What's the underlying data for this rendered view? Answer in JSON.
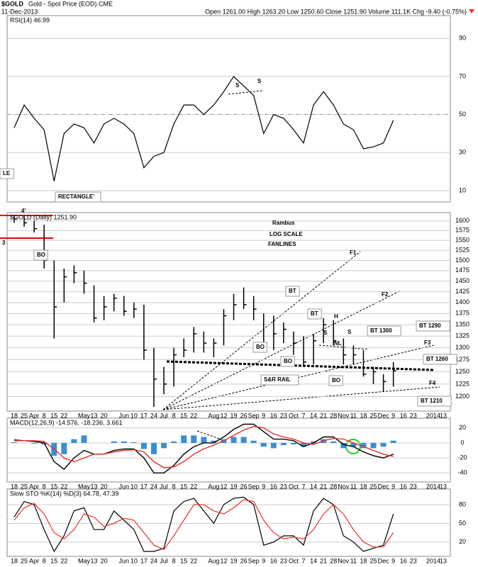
{
  "header": {
    "symbol": "$GOLD",
    "name": "Gold - Spot Price (EOD) CME",
    "date": "11-Dec-2013",
    "quote": "Open 1261.00 High 1263.20 Low 1250.60 Close 1251.90 Volume 111.1K Chg -9.40 (-0.75%)"
  },
  "chart_data": [
    {
      "type": "line",
      "label": "RSI(14) 46.99",
      "ylim": [
        4,
        102
      ],
      "yticks": [
        10,
        30,
        50,
        70,
        90
      ],
      "series": [
        {
          "color": "#000000",
          "values": [
            43,
            55,
            48,
            42,
            15,
            40,
            45,
            43,
            35,
            45,
            48,
            45,
            40,
            22,
            28,
            30,
            45,
            55,
            55,
            50,
            55,
            62,
            70,
            65,
            60,
            40,
            50,
            48,
            42,
            35,
            55,
            62,
            55,
            45,
            42,
            32,
            33,
            35,
            47,
            null,
            null,
            null,
            null,
            null
          ]
        }
      ]
    },
    {
      "type": "ohlc",
      "label": "$GOLD (Daily) 1251.90",
      "log_scale": true,
      "ylim": [
        1172,
        1622
      ],
      "yticks": [
        1200,
        1225,
        1250,
        1275,
        1300,
        1325,
        1350,
        1375,
        1400,
        1425,
        1450,
        1475,
        1500,
        1525,
        1550,
        1575,
        1600
      ],
      "categories": [
        "18",
        "25",
        "Apr",
        "8",
        "15",
        "22",
        null,
        "May",
        "13",
        "20",
        null,
        "Jun",
        "10",
        "17",
        "24",
        "Jul",
        "8",
        "15",
        "22",
        null,
        "Aug",
        "12",
        "19",
        "26",
        "Sep",
        "9",
        "16",
        "23",
        "Oct",
        "7",
        "14",
        "21",
        "28",
        "Nov",
        "11",
        "18",
        "25",
        "Dec",
        "9",
        "16",
        "23",
        null,
        "2014",
        "13"
      ],
      "color": "#000000",
      "high": [
        1615,
        1612,
        1600,
        1590,
        1500,
        1480,
        1488,
        1475,
        1440,
        1415,
        1420,
        1415,
        1400,
        1395,
        1300,
        1260,
        1300,
        1320,
        1345,
        1335,
        1320,
        1385,
        1420,
        1435,
        1415,
        1375,
        1370,
        1355,
        1335,
        1325,
        1330,
        1365,
        1360,
        1320,
        1305,
        1295,
        1260,
        1245,
        1270,
        null,
        null,
        null,
        null,
        null
      ],
      "low": [
        1595,
        1585,
        1570,
        1480,
        1320,
        1400,
        1445,
        1420,
        1355,
        1360,
        1380,
        1370,
        1365,
        1275,
        1180,
        1205,
        1220,
        1280,
        1290,
        1290,
        1280,
        1305,
        1360,
        1385,
        1360,
        1300,
        1295,
        1310,
        1285,
        1260,
        1265,
        1310,
        1305,
        1265,
        1265,
        1240,
        1225,
        1210,
        1220,
        null,
        null,
        null,
        null,
        null
      ],
      "close": [
        1605,
        1595,
        1580,
        1500,
        1390,
        1460,
        1470,
        1445,
        1365,
        1390,
        1410,
        1380,
        1385,
        1295,
        1235,
        1225,
        1285,
        1295,
        1330,
        1310,
        1310,
        1370,
        1395,
        1395,
        1385,
        1310,
        1330,
        1340,
        1310,
        1270,
        1315,
        1350,
        1315,
        1285,
        1285,
        1245,
        1250,
        1230,
        1252,
        null,
        null,
        null,
        null,
        null
      ]
    },
    {
      "type": "macd",
      "label": "MACD(12,26,9) -14.576, -18.236, 3.661",
      "ylim": [
        -52,
        33
      ],
      "yticks": [
        20,
        0,
        -20,
        -40
      ],
      "series": [
        {
          "color": "#000000",
          "values": [
            4,
            3,
            2,
            0,
            -25,
            -35,
            -20,
            -10,
            -15,
            -15,
            -10,
            -8,
            -8,
            -20,
            -40,
            -40,
            -30,
            -15,
            -5,
            0,
            0,
            8,
            18,
            25,
            25,
            15,
            5,
            5,
            3,
            -5,
            0,
            8,
            8,
            -2,
            -5,
            -12,
            -17,
            -20,
            -15,
            null,
            null,
            null,
            null,
            null
          ]
        },
        {
          "color": "#e8302a",
          "values": [
            3,
            3,
            3,
            2,
            -8,
            -20,
            -25,
            -20,
            -15,
            -15,
            -12,
            -10,
            -9,
            -12,
            -25,
            -33,
            -32,
            -25,
            -15,
            -8,
            -3,
            3,
            10,
            17,
            22,
            20,
            12,
            8,
            5,
            0,
            -2,
            3,
            6,
            5,
            0,
            -5,
            -10,
            -15,
            -18,
            null,
            null,
            null,
            null,
            null
          ]
        }
      ],
      "histogram": {
        "color": "#3a8fd0",
        "values": [
          1,
          0,
          -1,
          -2,
          -17,
          -15,
          5,
          10,
          0,
          0,
          2,
          2,
          1,
          -8,
          -15,
          -7,
          2,
          10,
          10,
          8,
          3,
          5,
          8,
          8,
          3,
          -5,
          -7,
          -3,
          -2,
          -5,
          2,
          5,
          2,
          -7,
          -5,
          -7,
          -7,
          -5,
          3,
          null,
          null,
          null,
          null,
          null
        ]
      }
    },
    {
      "type": "line",
      "label": "Slow STO %K(14) %D(3) 64.78, 47.39",
      "ylim": [
        -3,
        105
      ],
      "yticks": [
        80,
        50,
        20
      ],
      "series": [
        {
          "color": "#000000",
          "values": [
            60,
            85,
            80,
            40,
            5,
            30,
            70,
            75,
            40,
            40,
            70,
            55,
            40,
            5,
            5,
            10,
            70,
            85,
            90,
            70,
            50,
            80,
            90,
            92,
            80,
            15,
            20,
            30,
            30,
            15,
            70,
            90,
            80,
            30,
            20,
            5,
            10,
            15,
            65,
            null,
            null,
            null,
            null,
            null
          ]
        },
        {
          "color": "#e8302a",
          "values": [
            55,
            75,
            82,
            65,
            35,
            25,
            40,
            65,
            60,
            45,
            50,
            58,
            55,
            35,
            15,
            8,
            30,
            55,
            80,
            80,
            70,
            65,
            75,
            88,
            85,
            55,
            35,
            25,
            28,
            25,
            40,
            65,
            80,
            65,
            40,
            20,
            12,
            12,
            35,
            null,
            null,
            null,
            null,
            null
          ]
        }
      ]
    }
  ],
  "annotations": [
    "S",
    "S",
    "LE",
    "RECTANGLE'",
    "4'",
    "3",
    "BO",
    "Rambus",
    "LOG SCALE",
    "FANLINES",
    "F1",
    "F2",
    "F3",
    "F4",
    "BT",
    "BT",
    "H",
    "S",
    "S",
    "NL",
    "BT 1300",
    "BT 1290",
    "BT 1260",
    "BT 1210",
    "BO",
    "BO",
    "BO",
    "S&R RAIL"
  ]
}
